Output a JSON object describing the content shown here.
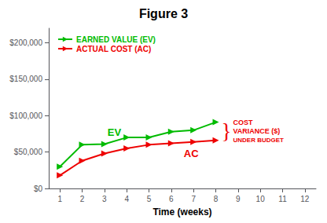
{
  "chart_data": {
    "type": "line",
    "title": "Figure 3",
    "xlabel": "Time (weeks)",
    "x": [
      1,
      2,
      3,
      4,
      5,
      6,
      7,
      8
    ],
    "series": [
      {
        "name": "EARNED VALUE (EV)",
        "color": "#00bb00",
        "marker": "triangle-right",
        "values": [
          30000,
          60000,
          61000,
          70000,
          70000,
          78000,
          80000,
          91000
        ]
      },
      {
        "name": "ACTUAL COST (AC)",
        "color": "#ee0000",
        "marker": "triangle-right",
        "values": [
          18000,
          38000,
          48000,
          55000,
          60000,
          62000,
          64000,
          66000
        ]
      }
    ],
    "xlim": [
      0.5,
      12.5
    ],
    "xticks": [
      1,
      2,
      3,
      4,
      5,
      6,
      7,
      8,
      9,
      10,
      11,
      12
    ],
    "ylim": [
      0,
      220000
    ],
    "yticks": [
      {
        "value": 0,
        "label": "$0"
      },
      {
        "value": 50000,
        "label": "$50,000"
      },
      {
        "value": 100000,
        "label": "$100,000"
      },
      {
        "value": 150000,
        "label": "$150,000"
      },
      {
        "value": 200000,
        "label": "$200,000"
      }
    ],
    "grid": false,
    "legend": "upper left",
    "annotations": [
      {
        "text": "EV",
        "color": "#00bb00"
      },
      {
        "text": "AC",
        "color": "#ee0000"
      },
      {
        "text": "}",
        "color": "#ee0000"
      },
      {
        "text": "COST",
        "color": "#ee0000"
      },
      {
        "text": "VARIANCE ($)",
        "color": "#ee0000"
      },
      {
        "text": "UNDER BUDGET",
        "color": "#ee0000"
      }
    ]
  }
}
